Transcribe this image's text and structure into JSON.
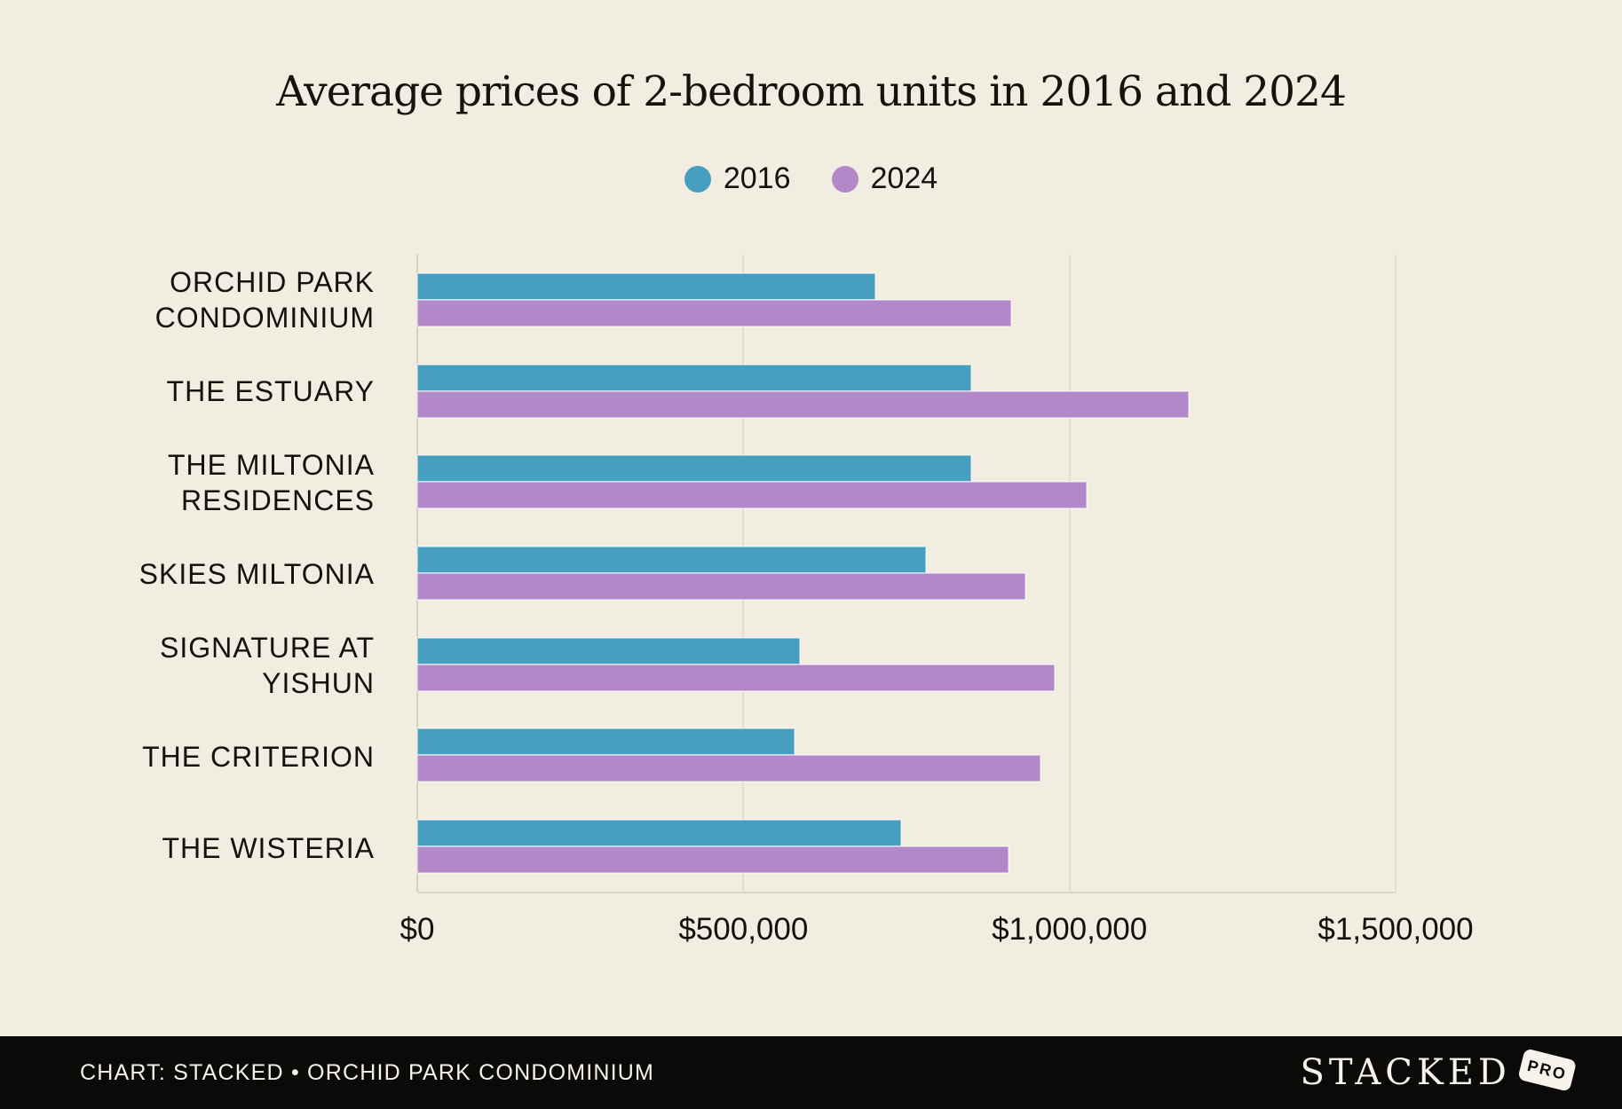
{
  "title": "Average prices of 2-bedroom units in 2016 and 2024",
  "legend": [
    {
      "label": "2016",
      "color": "#479FC0"
    },
    {
      "label": "2024",
      "color": "#B288C8"
    }
  ],
  "colors": {
    "background": "#F2EDE1",
    "series_2016": "#479FC0",
    "series_2024": "#B288C8",
    "gridline": "#E4DED0",
    "text": "#15110D",
    "footer_background": "#0B0A08",
    "footer_text": "#F6F3EB"
  },
  "chart_data": {
    "type": "bar",
    "orientation": "horizontal",
    "title": "Average prices of 2-bedroom units in 2016 and 2024",
    "categories": [
      "ORCHID PARK CONDOMINIUM",
      "THE ESTUARY",
      "THE MILTONIA RESIDENCES",
      "SKIES MILTONIA",
      "SIGNATURE AT YISHUN",
      "THE CRITERION",
      "THE WISTERIA"
    ],
    "series": [
      {
        "name": "2016",
        "color": "#479FC0",
        "values": [
          703000,
          850000,
          850000,
          780000,
          586000,
          579000,
          742000
        ]
      },
      {
        "name": "2024",
        "color": "#B288C8",
        "values": [
          911000,
          1183000,
          1026000,
          933000,
          977000,
          955000,
          906000
        ]
      }
    ],
    "xlim": [
      0,
      1500000
    ],
    "x_ticks": [
      {
        "value": 0,
        "label": "$0"
      },
      {
        "value": 500000,
        "label": "$500,000"
      },
      {
        "value": 1000000,
        "label": "$1,000,000"
      },
      {
        "value": 1500000,
        "label": "$1,500,000"
      }
    ],
    "grid": "vertical",
    "legend_position": "top-center"
  },
  "footer": {
    "credit": "CHART: STACKED • ORCHID PARK CONDOMINIUM",
    "brand": "STACKED",
    "badge": "PRO"
  }
}
